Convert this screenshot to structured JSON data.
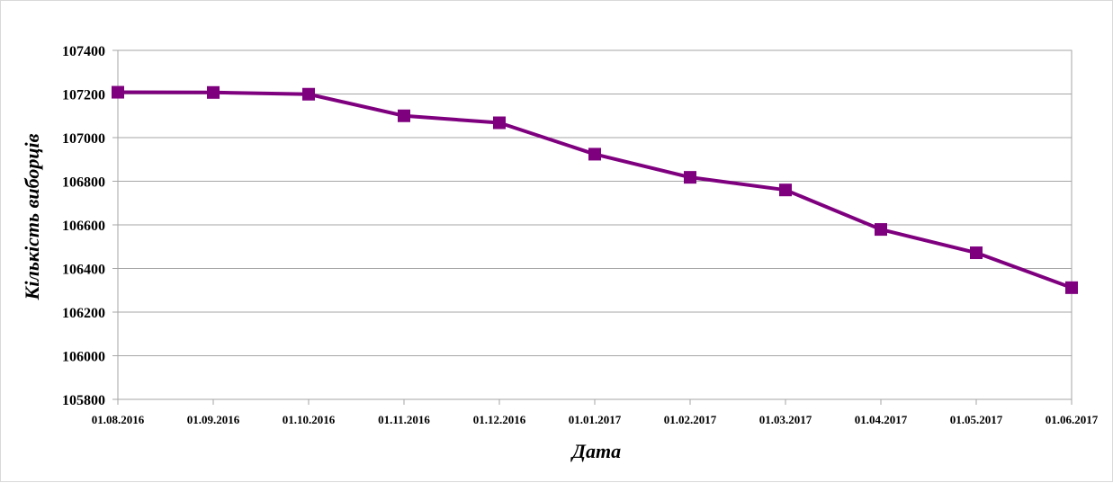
{
  "chart_data": {
    "type": "line",
    "title": "",
    "xlabel": "Дата",
    "ylabel": "Кількість виборців",
    "ylim": [
      105800,
      107400
    ],
    "y_ticks": [
      "107400",
      "107200",
      "107000",
      "106800",
      "106600",
      "106400",
      "106200",
      "106000",
      "105800"
    ],
    "categories": [
      "01.08.2016",
      "01.09.2016",
      "01.10.2016",
      "01.11.2016",
      "01.12.2016",
      "01.01.2017",
      "01.02.2017",
      "01.03.2017",
      "01.04.2017",
      "01.05.2017",
      "01.06.2017"
    ],
    "series": [
      {
        "values": [
          107208,
          107207,
          107199,
          107100,
          107068,
          106924,
          106818,
          106760,
          106579,
          106472,
          106312
        ],
        "color": "#7f007f",
        "marker": "square"
      }
    ],
    "grid": true,
    "legend": "none"
  }
}
